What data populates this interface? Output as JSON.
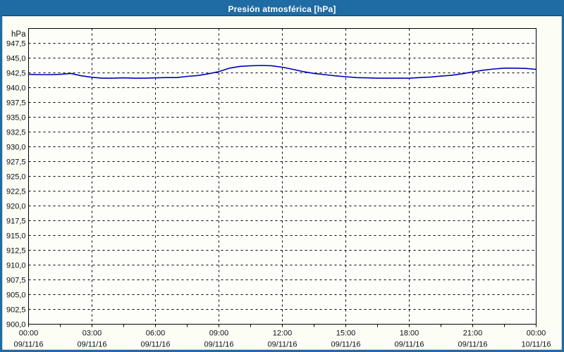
{
  "window": {
    "title": "Presión atmosférica [hPa]"
  },
  "colors": {
    "titlebar_bg": "#1f6ba4",
    "titlebar_text": "#ffffff",
    "titlebar_divider": "#0d3f68",
    "window_border": "#1f6ba4",
    "content_bg": "#fcfdf5",
    "plot_bg": "#fdfefa",
    "grid_color": "#000000",
    "axis_color": "#000000",
    "label_color": "#0a0f14",
    "line_color": "#0000bd"
  },
  "chart_data": {
    "type": "line",
    "title": "Presión atmosférica [hPa]",
    "legend": "none",
    "grid": "dashed",
    "y_axis": {
      "unit": "hPa",
      "min": 900,
      "max": 950,
      "tick_step": 2.5,
      "decimal_separator": ",",
      "tick_values": [
        947.5,
        945.0,
        942.5,
        940.0,
        937.5,
        935.0,
        932.5,
        930.0,
        927.5,
        925.0,
        922.5,
        920.0,
        917.5,
        915.0,
        912.5,
        910.0,
        907.5,
        905.0,
        902.5,
        900.0
      ],
      "tick_labels": [
        "947,5",
        "945,0",
        "942,5",
        "940,0",
        "937,5",
        "935,0",
        "932,5",
        "930,0",
        "927,5",
        "925,0",
        "922,5",
        "920,0",
        "917,5",
        "915,0",
        "912,5",
        "910,0",
        "907,5",
        "905,0",
        "902,5",
        "900,0"
      ]
    },
    "x_axis": {
      "span_hours": 24,
      "minor_tick_hours": 1.5,
      "major_ticks": [
        {
          "hour": 0,
          "time": "00:00",
          "date": "09/11/16"
        },
        {
          "hour": 3,
          "time": "03:00",
          "date": "09/11/16"
        },
        {
          "hour": 6,
          "time": "06:00",
          "date": "09/11/16"
        },
        {
          "hour": 9,
          "time": "09:00",
          "date": "09/11/16"
        },
        {
          "hour": 12,
          "time": "12:00",
          "date": "09/11/16"
        },
        {
          "hour": 15,
          "time": "15:00",
          "date": "09/11/16"
        },
        {
          "hour": 18,
          "time": "18:00",
          "date": "09/11/16"
        },
        {
          "hour": 21,
          "time": "21:00",
          "date": "09/11/16"
        },
        {
          "hour": 24,
          "time": "00:00",
          "date": "10/11/16"
        }
      ]
    },
    "series": [
      {
        "name": "Presión atmosférica",
        "color": "#0000bd",
        "x_hours": [
          0,
          0.5,
          1,
          1.5,
          2,
          2.5,
          3,
          3.5,
          4,
          4.5,
          5,
          5.5,
          6,
          6.5,
          7,
          7.5,
          8,
          8.5,
          9,
          9.5,
          10,
          10.5,
          11,
          11.5,
          12,
          12.5,
          13,
          13.5,
          14,
          14.5,
          15,
          15.5,
          16,
          16.5,
          17,
          17.5,
          18,
          18.5,
          19,
          19.5,
          20,
          20.5,
          21,
          21.5,
          22,
          22.5,
          23,
          23.5,
          24
        ],
        "values": [
          942.25,
          942.2,
          942.2,
          942.25,
          942.4,
          942.0,
          941.75,
          941.6,
          941.6,
          941.65,
          941.6,
          941.6,
          941.65,
          941.7,
          941.7,
          941.9,
          942.05,
          942.35,
          942.7,
          943.3,
          943.6,
          943.7,
          943.75,
          943.7,
          943.45,
          943.1,
          942.7,
          942.4,
          942.2,
          942.0,
          941.85,
          941.7,
          941.65,
          941.6,
          941.6,
          941.6,
          941.6,
          941.7,
          941.8,
          941.95,
          942.1,
          942.35,
          942.65,
          942.95,
          943.15,
          943.3,
          943.3,
          943.25,
          943.1
        ]
      }
    ]
  }
}
